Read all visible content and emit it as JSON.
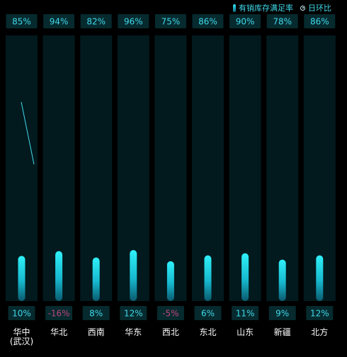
{
  "legend": {
    "bar_label": "有销库存满足率",
    "line_label": "日环比"
  },
  "colors": {
    "background": "#000000",
    "column_bg": "#021a1e",
    "label_box": "#062a2e",
    "bar_top": "#2ff0f8",
    "bar_bottom": "#0a5a6e",
    "positive_text": "#3fd8ea",
    "negative_text": "#c0457a",
    "category_text": "#ffffff"
  },
  "chart_data": {
    "type": "bar",
    "categories": [
      "华中\n(武汉)",
      "华北",
      "西南",
      "华东",
      "西北",
      "东北",
      "山东",
      "新疆",
      "北方"
    ],
    "series": [
      {
        "name": "有销库存满足率",
        "values": [
          85,
          94,
          82,
          96,
          75,
          86,
          90,
          78,
          86
        ],
        "value_labels": [
          "85%",
          "94%",
          "82%",
          "96%",
          "75%",
          "86%",
          "90%",
          "78%",
          "86%"
        ]
      },
      {
        "name": "日环比",
        "values": [
          10,
          -16,
          8,
          12,
          -5,
          6,
          11,
          9,
          12
        ],
        "value_labels": [
          "10%",
          "-16%",
          "8%",
          "12%",
          "-5%",
          "6%",
          "11%",
          "9%",
          "12%"
        ]
      }
    ],
    "ylim": [
      0,
      500
    ],
    "legend_position": "top-right",
    "grid": false
  }
}
